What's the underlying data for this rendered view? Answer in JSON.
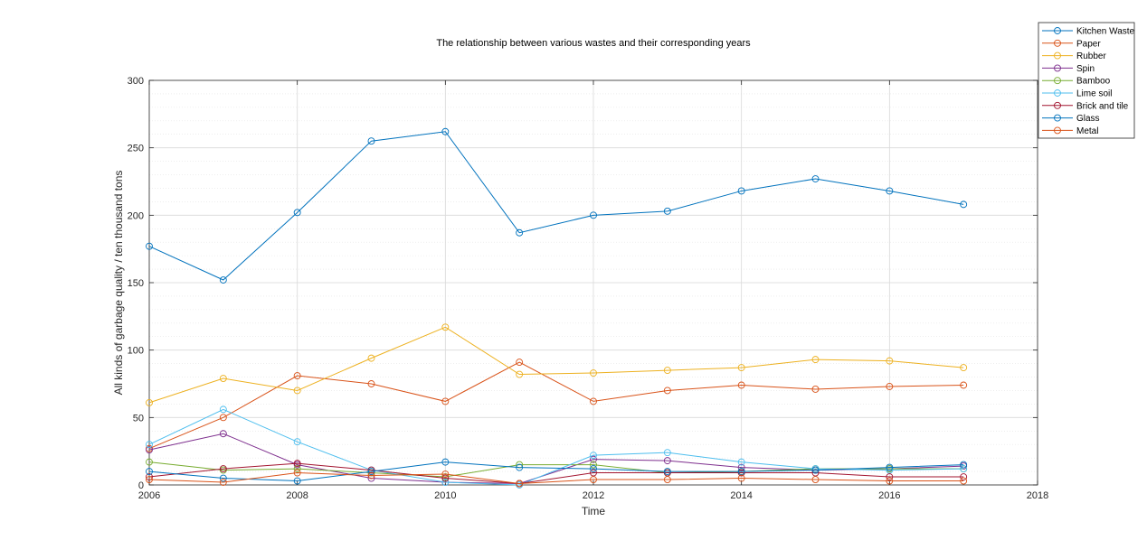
{
  "chart_data": {
    "type": "line",
    "title": "The relationship between various wastes and their corresponding years",
    "xlabel": "Time",
    "ylabel": "All kinds of garbage quality / ten thousand tons",
    "xlim": [
      2006,
      2018
    ],
    "ylim": [
      0,
      300
    ],
    "xticks": [
      "2006",
      "2008",
      "2010",
      "2012",
      "2014",
      "2016",
      "2018"
    ],
    "yticks": [
      "0",
      "50",
      "100",
      "150",
      "200",
      "250",
      "300"
    ],
    "grid": true,
    "minor_grid": true,
    "legend_position": "top-right outside",
    "x": [
      2006,
      2007,
      2008,
      2009,
      2010,
      2011,
      2012,
      2013,
      2014,
      2015,
      2016,
      2017
    ],
    "series": [
      {
        "name": "Kitchen Waste",
        "color": "#0072BD",
        "values": [
          177,
          152,
          202,
          255,
          262,
          187,
          200,
          203,
          218,
          227,
          218,
          208
        ]
      },
      {
        "name": "Paper",
        "color": "#D95319",
        "values": [
          27,
          50,
          81,
          75,
          62,
          91,
          62,
          70,
          74,
          71,
          73,
          74
        ]
      },
      {
        "name": "Rubber",
        "color": "#EDB120",
        "values": [
          61,
          79,
          70,
          94,
          117,
          82,
          83,
          85,
          87,
          93,
          92,
          87
        ]
      },
      {
        "name": "Spin",
        "color": "#7E2F8E",
        "values": [
          26,
          38,
          15,
          5,
          2,
          1,
          19,
          18,
          13,
          11,
          12,
          14
        ]
      },
      {
        "name": "Bamboo",
        "color": "#77AC30",
        "values": [
          17,
          11,
          12,
          9,
          6,
          15,
          15,
          9,
          10,
          12,
          12,
          12
        ]
      },
      {
        "name": "Lime soil",
        "color": "#4DBEEE",
        "values": [
          30,
          56,
          32,
          11,
          2,
          0,
          22,
          24,
          17,
          12,
          11,
          12
        ]
      },
      {
        "name": "Brick and tile",
        "color": "#A2142F",
        "values": [
          6,
          12,
          16,
          11,
          5,
          1,
          9,
          9,
          9,
          9,
          6,
          6
        ]
      },
      {
        "name": "Glass",
        "color": "#0072BD",
        "values": [
          10,
          5,
          3,
          10,
          17,
          13,
          12,
          10,
          10,
          11,
          13,
          15
        ]
      },
      {
        "name": "Metal",
        "color": "#D95319",
        "values": [
          4,
          2,
          9,
          7,
          8,
          1,
          4,
          4,
          5,
          4,
          3,
          3
        ]
      }
    ]
  }
}
